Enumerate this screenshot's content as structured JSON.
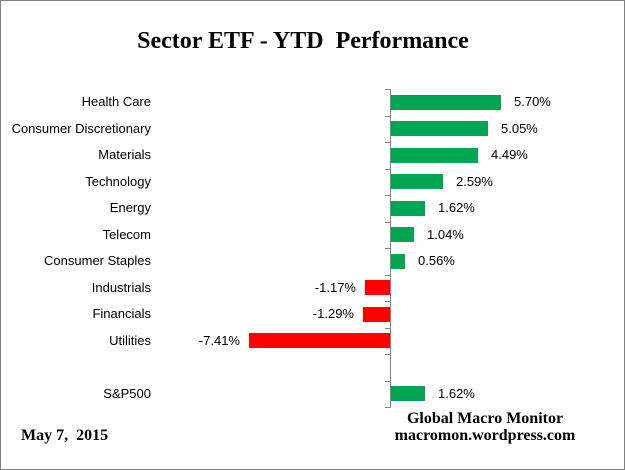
{
  "title": "Sector ETF - YTD  Performance",
  "footer": {
    "date": "May 7,  2015",
    "source_line1": "Global Macro Monitor",
    "source_line2": "macromon.wordpress.com"
  },
  "chart_data": {
    "type": "bar",
    "orientation": "horizontal",
    "title": "Sector ETF - YTD  Performance",
    "xlabel": "",
    "ylabel": "",
    "xlim": [
      -8.5,
      7.0
    ],
    "grid": false,
    "legend": "none",
    "value_format": "percent",
    "categories": [
      "Health Care",
      "Consumer Discretionary",
      "Materials",
      "Technology",
      "Energy",
      "Telecom",
      "Consumer Staples",
      "Industrials",
      "Financials",
      "Utilities",
      "",
      "S&P500"
    ],
    "values": [
      5.7,
      5.05,
      4.49,
      2.59,
      1.62,
      1.04,
      0.56,
      -1.17,
      -1.29,
      -7.41,
      null,
      1.62
    ],
    "rows": [
      {
        "label": "Health Care",
        "value": 5.7,
        "display": "5.70%"
      },
      {
        "label": "Consumer Discretionary",
        "value": 5.05,
        "display": "5.05%"
      },
      {
        "label": "Materials",
        "value": 4.49,
        "display": "4.49%"
      },
      {
        "label": "Technology",
        "value": 2.59,
        "display": "2.59%"
      },
      {
        "label": "Energy",
        "value": 1.62,
        "display": "1.62%"
      },
      {
        "label": "Telecom",
        "value": 1.04,
        "display": "1.04%"
      },
      {
        "label": "Consumer Staples",
        "value": 0.56,
        "display": "0.56%"
      },
      {
        "label": "Industrials",
        "value": -1.17,
        "display": "-1.17%"
      },
      {
        "label": "Financials",
        "value": -1.29,
        "display": "-1.29%"
      },
      {
        "label": "Utilities",
        "value": -7.41,
        "display": "-7.41%"
      },
      {
        "label": "",
        "value": null,
        "display": ""
      },
      {
        "label": "S&P500",
        "value": 1.62,
        "display": "1.62%"
      }
    ],
    "colors": {
      "positive_bar": "#00A651",
      "negative_bar": "#FF0000",
      "axis": "#848484",
      "text": "#000000",
      "background": "#FFFFFF"
    }
  }
}
